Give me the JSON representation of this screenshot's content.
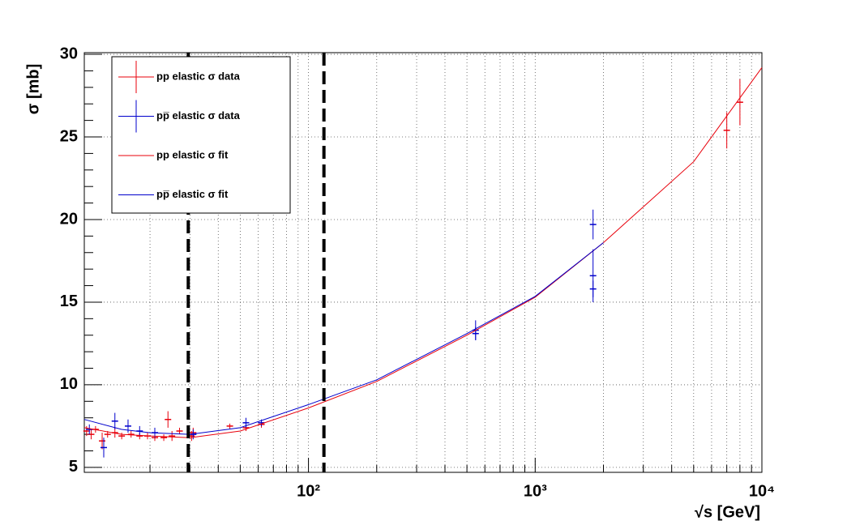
{
  "chart_data": {
    "type": "scatter",
    "x_label": "√s [GeV]",
    "y_label": "σ [mb]",
    "xscale": "log",
    "grid": true,
    "xlim": [
      10.26,
      10000
    ],
    "ylim": [
      4.7,
      30.1
    ],
    "xticks": [
      {
        "value": 100,
        "label": "10²"
      },
      {
        "value": 1000,
        "label": "10³"
      },
      {
        "value": 10000,
        "label": "10⁴"
      }
    ],
    "xminorticks": [
      20,
      30,
      40,
      50,
      60,
      70,
      80,
      90,
      200,
      300,
      400,
      500,
      600,
      700,
      800,
      900,
      2000,
      3000,
      4000,
      5000,
      6000,
      7000,
      8000,
      9000
    ],
    "yticks": [
      5,
      10,
      15,
      20,
      25,
      30
    ],
    "yminorticks": [
      6,
      7,
      8,
      9,
      11,
      12,
      13,
      14,
      16,
      17,
      18,
      19,
      21,
      22,
      23,
      24,
      26,
      27,
      28,
      29
    ],
    "vlines": [
      29.5,
      117
    ],
    "legend": "top-left",
    "series": [
      {
        "name": "pp elastic  σ data",
        "kind": "points",
        "color": "#e8000b",
        "x": [
          10.5,
          11,
          11.5,
          12.3,
          13,
          14,
          15,
          16.5,
          18,
          19.5,
          21,
          23,
          24,
          25,
          27,
          30.5,
          31,
          45,
          53,
          62,
          7000,
          8000
        ],
        "values": [
          7.2,
          7.0,
          7.3,
          6.6,
          7.0,
          7.1,
          6.9,
          7.0,
          6.9,
          6.9,
          6.8,
          6.8,
          7.9,
          6.9,
          7.2,
          6.9,
          7.1,
          7.5,
          7.4,
          7.6,
          25.4,
          27.1
        ],
        "yerr": [
          0.3,
          0.3,
          0.2,
          0.5,
          0.2,
          0.3,
          0.2,
          0.2,
          0.2,
          0.2,
          0.2,
          0.2,
          0.5,
          0.3,
          0.2,
          0.3,
          0.3,
          0.15,
          0.2,
          0.2,
          1.1,
          1.4
        ]
      },
      {
        "name": "pp̅ elastic  σ data",
        "kind": "points",
        "color": "#0000cc",
        "x": [
          10.8,
          12.5,
          14,
          16,
          18,
          21,
          31,
          53,
          62,
          546,
          546,
          1800,
          1800,
          1800
        ],
        "values": [
          7.3,
          6.2,
          7.8,
          7.5,
          7.2,
          7.1,
          7.0,
          7.7,
          7.7,
          13.3,
          13.1,
          19.7,
          16.6,
          15.8
        ],
        "yerr": [
          0.3,
          0.6,
          0.5,
          0.4,
          0.3,
          0.3,
          0.3,
          0.3,
          0.2,
          0.6,
          0.4,
          0.9,
          1.6,
          0.5
        ]
      },
      {
        "name": "pp elastic  σ fit",
        "kind": "line",
        "color": "#e8000b",
        "x": [
          10.26,
          15,
          20,
          30,
          50,
          100,
          200,
          500,
          1000,
          2000,
          5000,
          10000
        ],
        "values": [
          7.4,
          7.0,
          6.9,
          6.8,
          7.2,
          8.6,
          10.2,
          13.0,
          15.3,
          18.6,
          23.5,
          29.2
        ]
      },
      {
        "name": "pp̅ elastic  σ fit",
        "kind": "line",
        "color": "#0000cc",
        "x": [
          10.26,
          15,
          20,
          30,
          50,
          100,
          200,
          500,
          1000,
          2000
        ],
        "values": [
          7.9,
          7.3,
          7.1,
          7.0,
          7.4,
          8.8,
          10.3,
          13.1,
          15.35,
          18.6
        ]
      }
    ]
  }
}
